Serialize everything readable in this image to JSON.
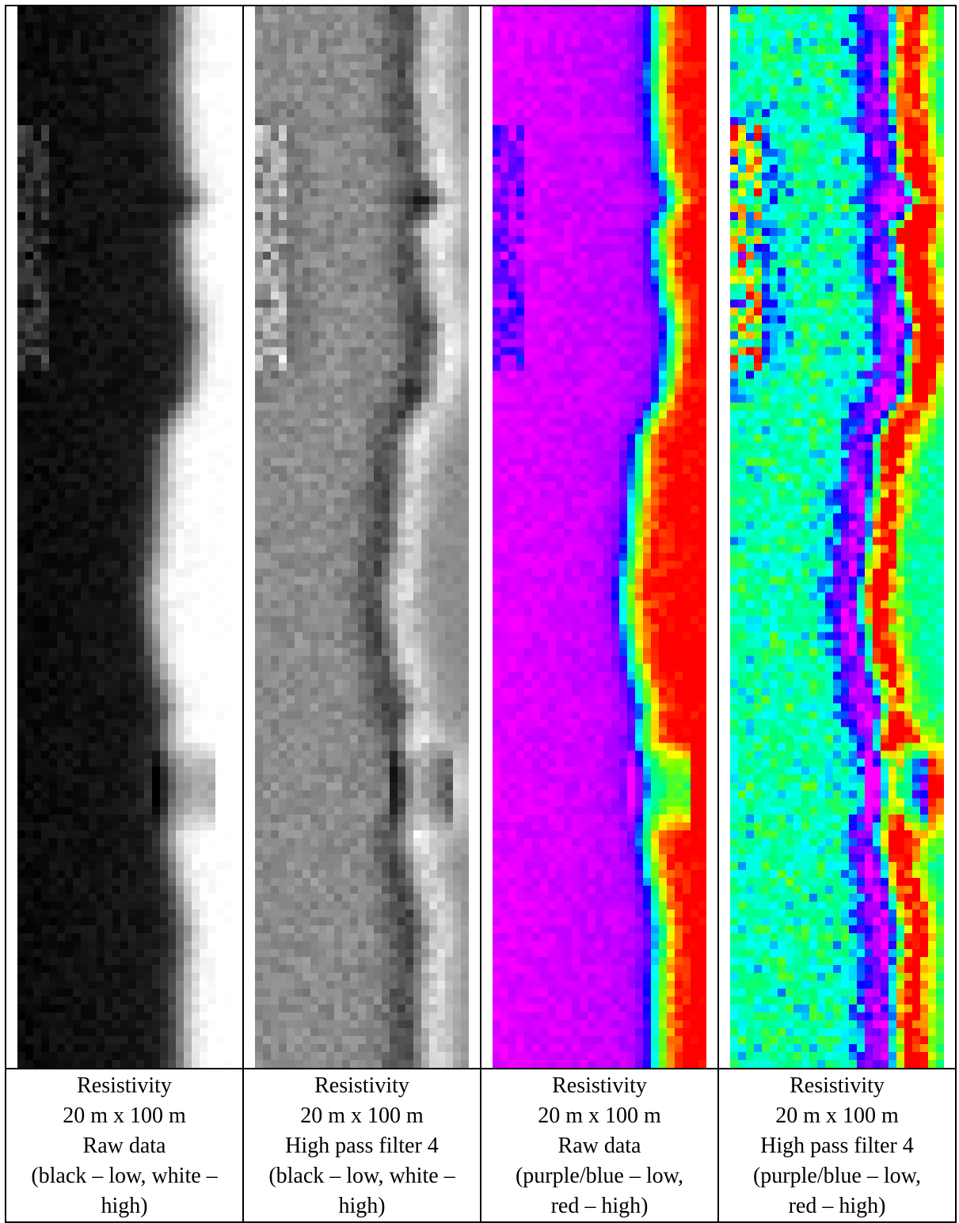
{
  "panels": [
    {
      "title": "Resistivity",
      "dimensions": "20 m x 100 m",
      "processing": "Raw data",
      "scale_note_1": "(black – low, white –",
      "scale_note_2": "high)",
      "palette": "grayscale",
      "filter": "raw"
    },
    {
      "title": "Resistivity",
      "dimensions": "20 m x 100 m",
      "processing": "High pass filter 4",
      "scale_note_1": "(black – low, white –",
      "scale_note_2": "high)",
      "palette": "grayscale",
      "filter": "highpass"
    },
    {
      "title": "Resistivity",
      "dimensions": "20 m x 100 m",
      "processing": "Raw data",
      "scale_note_1": "(purple/blue – low,",
      "scale_note_2": "red – high)",
      "palette": "rainbow",
      "filter": "raw"
    },
    {
      "title": "Resistivity",
      "dimensions": "20 m x 100 m",
      "processing": "High pass filter 4",
      "scale_note_1": "(purple/blue – low,",
      "scale_note_2": "red – high)",
      "palette": "rainbow",
      "filter": "highpass"
    }
  ]
}
